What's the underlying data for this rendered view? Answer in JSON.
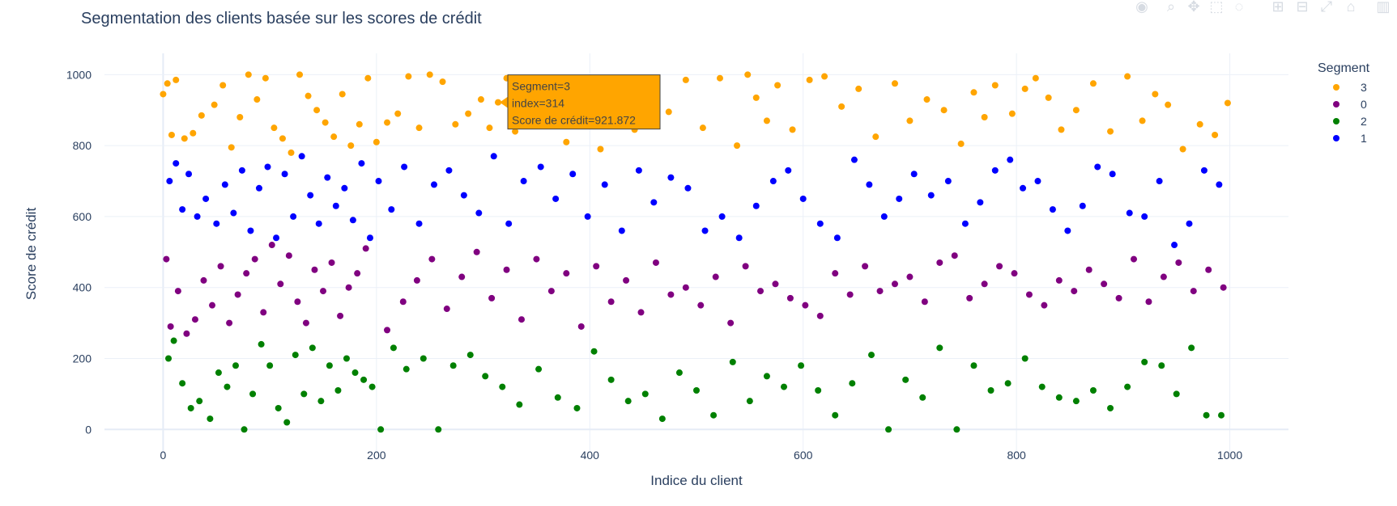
{
  "chart_data": {
    "type": "scatter",
    "title": "Segmentation des clients basée sur les scores de crédit",
    "xlabel": "Indice du client",
    "ylabel": "Score de crédit",
    "xlim": [
      -55,
      1055
    ],
    "ylim": [
      -70,
      1060
    ],
    "xticks": [
      0,
      200,
      400,
      600,
      800,
      1000
    ],
    "yticks": [
      0,
      200,
      400,
      600,
      800,
      1000
    ],
    "grid": true,
    "legend": {
      "title": "Segment",
      "position": "top-right"
    },
    "series": [
      {
        "name": "3",
        "color": "#FFA500",
        "x": [
          0,
          4,
          8,
          12,
          20,
          28,
          36,
          48,
          56,
          64,
          72,
          80,
          88,
          96,
          104,
          112,
          120,
          128,
          136,
          144,
          152,
          160,
          168,
          176,
          184,
          192,
          200,
          210,
          220,
          230,
          240,
          250,
          262,
          274,
          286,
          298,
          306,
          314,
          322,
          330,
          346,
          362,
          378,
          394,
          410,
          426,
          442,
          458,
          474,
          490,
          506,
          522,
          538,
          548,
          556,
          566,
          576,
          590,
          606,
          620,
          636,
          652,
          668,
          686,
          700,
          716,
          732,
          748,
          760,
          770,
          780,
          796,
          808,
          818,
          830,
          842,
          856,
          872,
          888,
          904,
          918,
          930,
          942,
          956,
          972,
          986,
          998
        ],
        "y": [
          945,
          975,
          830,
          985,
          820,
          835,
          885,
          915,
          970,
          795,
          880,
          1000,
          930,
          990,
          850,
          820,
          780,
          1000,
          940,
          900,
          865,
          825,
          945,
          800,
          860,
          990,
          810,
          865,
          890,
          995,
          850,
          1000,
          980,
          860,
          890,
          930,
          850,
          921.872,
          990,
          840,
          905,
          870,
          810,
          935,
          790,
          960,
          845,
          920,
          895,
          985,
          850,
          990,
          800,
          1000,
          935,
          870,
          970,
          845,
          985,
          995,
          910,
          960,
          825,
          975,
          870,
          930,
          900,
          805,
          950,
          880,
          970,
          890,
          960,
          990,
          935,
          845,
          900,
          975,
          840,
          995,
          870,
          945,
          915,
          790,
          860,
          830,
          920
        ]
      },
      {
        "name": "0",
        "color": "#800080",
        "x": [
          3,
          7,
          14,
          22,
          30,
          38,
          46,
          54,
          62,
          70,
          78,
          86,
          94,
          102,
          110,
          118,
          126,
          134,
          142,
          150,
          158,
          166,
          174,
          182,
          190,
          210,
          225,
          238,
          252,
          266,
          280,
          294,
          308,
          322,
          336,
          350,
          364,
          378,
          392,
          406,
          420,
          434,
          448,
          462,
          476,
          490,
          504,
          518,
          532,
          546,
          560,
          574,
          588,
          602,
          616,
          630,
          644,
          658,
          672,
          686,
          700,
          714,
          728,
          742,
          756,
          770,
          784,
          798,
          812,
          826,
          840,
          854,
          868,
          882,
          896,
          910,
          924,
          938,
          952,
          966,
          980,
          994
        ],
        "y": [
          480,
          290,
          390,
          270,
          310,
          420,
          350,
          460,
          300,
          380,
          440,
          480,
          330,
          520,
          410,
          490,
          360,
          300,
          450,
          390,
          470,
          320,
          400,
          440,
          510,
          280,
          360,
          420,
          480,
          340,
          430,
          500,
          370,
          450,
          310,
          480,
          390,
          440,
          290,
          460,
          360,
          420,
          330,
          470,
          380,
          400,
          350,
          430,
          300,
          460,
          390,
          410,
          370,
          350,
          320,
          440,
          380,
          460,
          390,
          410,
          430,
          360,
          470,
          490,
          370,
          410,
          460,
          440,
          380,
          350,
          420,
          390,
          450,
          410,
          370,
          480,
          360,
          430,
          470,
          390,
          450,
          400
        ]
      },
      {
        "name": "2",
        "color": "#008000",
        "x": [
          5,
          10,
          18,
          26,
          34,
          44,
          52,
          60,
          68,
          76,
          84,
          92,
          100,
          108,
          116,
          124,
          132,
          140,
          148,
          156,
          164,
          172,
          180,
          188,
          196,
          204,
          216,
          228,
          244,
          258,
          272,
          288,
          302,
          318,
          334,
          352,
          370,
          388,
          404,
          420,
          436,
          452,
          468,
          484,
          500,
          516,
          534,
          550,
          566,
          582,
          598,
          614,
          630,
          646,
          664,
          680,
          696,
          712,
          728,
          744,
          760,
          776,
          792,
          808,
          824,
          840,
          856,
          872,
          888,
          904,
          920,
          936,
          950,
          964,
          978,
          992
        ],
        "y": [
          200,
          250,
          130,
          60,
          80,
          30,
          160,
          120,
          180,
          0,
          100,
          240,
          180,
          60,
          20,
          210,
          100,
          230,
          80,
          180,
          110,
          200,
          160,
          140,
          120,
          0,
          230,
          170,
          200,
          0,
          180,
          210,
          150,
          120,
          70,
          170,
          90,
          60,
          220,
          140,
          80,
          100,
          30,
          160,
          110,
          40,
          190,
          80,
          150,
          120,
          180,
          110,
          40,
          130,
          210,
          0,
          140,
          90,
          230,
          0,
          180,
          110,
          130,
          200,
          120,
          90,
          80,
          110,
          60,
          120,
          190,
          180,
          100,
          230,
          40,
          40
        ]
      },
      {
        "name": "1",
        "color": "#0000FF",
        "x": [
          6,
          12,
          18,
          24,
          32,
          40,
          50,
          58,
          66,
          74,
          82,
          90,
          98,
          106,
          114,
          122,
          130,
          138,
          146,
          154,
          162,
          170,
          178,
          186,
          194,
          202,
          214,
          226,
          240,
          254,
          268,
          282,
          296,
          310,
          324,
          338,
          354,
          368,
          384,
          398,
          414,
          430,
          446,
          460,
          476,
          492,
          508,
          524,
          540,
          556,
          572,
          586,
          600,
          616,
          632,
          648,
          662,
          676,
          690,
          704,
          720,
          736,
          752,
          766,
          780,
          794,
          806,
          820,
          834,
          848,
          862,
          876,
          890,
          906,
          920,
          934,
          948,
          962,
          976,
          990
        ],
        "y": [
          700,
          750,
          620,
          720,
          600,
          650,
          580,
          690,
          610,
          730,
          560,
          680,
          740,
          540,
          720,
          600,
          770,
          660,
          580,
          710,
          630,
          680,
          590,
          750,
          540,
          700,
          620,
          740,
          580,
          690,
          730,
          660,
          610,
          770,
          580,
          700,
          740,
          650,
          720,
          600,
          690,
          560,
          730,
          640,
          710,
          680,
          560,
          600,
          540,
          630,
          700,
          730,
          650,
          580,
          540,
          760,
          690,
          600,
          650,
          720,
          660,
          700,
          580,
          640,
          730,
          760,
          680,
          700,
          620,
          560,
          630,
          740,
          720,
          610,
          600,
          700,
          520,
          580,
          730,
          690
        ]
      }
    ],
    "hover": {
      "segment_line": "Segment=3",
      "index_line": "index=314",
      "score_line": "Score de crédit=921.872",
      "x": 314,
      "y": 921.872,
      "color": "#FFA500"
    }
  },
  "modebar": {
    "icons": [
      "camera-icon",
      "zoom-icon",
      "pan-icon",
      "box-select-icon",
      "lasso-icon",
      "zoom-in-icon",
      "zoom-out-icon",
      "autoscale-icon",
      "home-icon",
      "plotly-logo-icon"
    ],
    "glyphs": [
      "◉",
      "⌕",
      "✥",
      "⬚",
      "◌",
      "⊞",
      "⊟",
      "⤢",
      "⌂",
      "▥"
    ]
  }
}
